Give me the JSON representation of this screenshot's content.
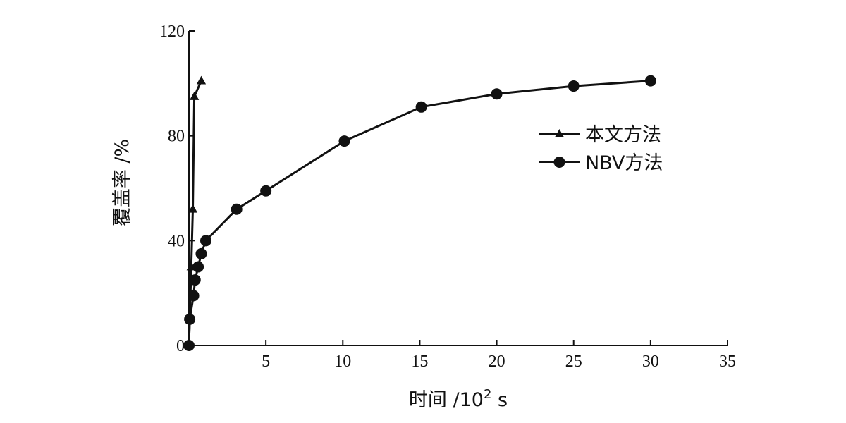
{
  "chart_data": {
    "type": "line",
    "title": "",
    "xlabel": "时间 /10",
    "xlabel_sup": "2",
    "xlabel_unit": " s",
    "ylabel": "覆盖率 /%",
    "xlim": [
      0,
      35
    ],
    "ylim": [
      0,
      120
    ],
    "xticks": [
      5,
      10,
      15,
      20,
      25,
      30,
      35
    ],
    "yticks": [
      0,
      40,
      80,
      120
    ],
    "grid": false,
    "legend_position": "right",
    "series": [
      {
        "name": "本文方法",
        "marker": "triangle",
        "x": [
          0,
          0.15,
          0.25,
          0.35,
          0.8
        ],
        "y": [
          0,
          30,
          52,
          95,
          101
        ]
      },
      {
        "name": "NBV方法",
        "marker": "circle",
        "x": [
          0,
          0.05,
          0.3,
          0.4,
          0.6,
          0.8,
          1.1,
          3.1,
          5.0,
          10.1,
          15.1,
          20.0,
          25.0,
          30.0
        ],
        "y": [
          0,
          10,
          19,
          25,
          30,
          35,
          40,
          52,
          59,
          78,
          91,
          96,
          99,
          101
        ]
      }
    ]
  }
}
